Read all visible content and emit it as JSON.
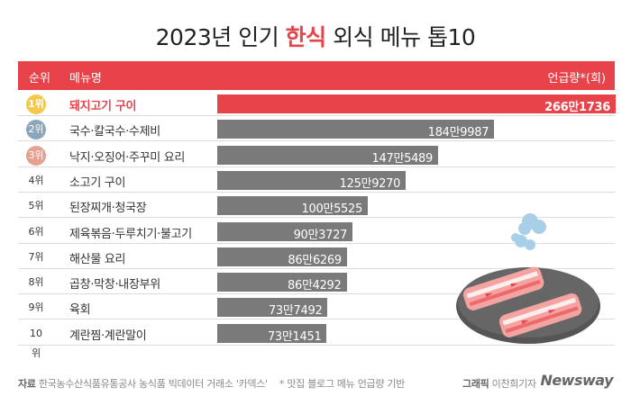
{
  "title": {
    "before": "2023년 인기 ",
    "highlight": "한식",
    "after": " 외식 메뉴 톱10"
  },
  "header": {
    "rank_label": "순위",
    "menu_label": "메뉴명",
    "unit_label": "언급량*(회)"
  },
  "colors": {
    "accent": "#e8434a",
    "bar": "#7a7a7a",
    "rank1": "#f3c84b",
    "rank2": "#8aa6bb",
    "rank3": "#e6a08f"
  },
  "chart_data": {
    "type": "bar",
    "orientation": "horizontal",
    "categories": [
      "돼지고기 구이",
      "국수·칼국수·수제비",
      "낙지·오징어·주꾸미 요리",
      "소고기 구이",
      "된장찌개·청국장",
      "제육볶음·두루치기·불고기",
      "해산물 요리",
      "곱창·막창·내장부위",
      "육회",
      "계란찜·계란말이"
    ],
    "ranks": [
      "1위",
      "2위",
      "3위",
      "4위",
      "5위",
      "6위",
      "7위",
      "8위",
      "9위",
      "10위"
    ],
    "values": [
      2661736,
      1849987,
      1475489,
      1259270,
      1005525,
      903727,
      866269,
      864292,
      737492,
      731451
    ],
    "value_labels": [
      "266만1736",
      "184만9987",
      "147만5489",
      "125만9270",
      "100만5525",
      "90만3727",
      "86만6269",
      "86만4292",
      "73만7492",
      "73만1451"
    ],
    "xlim": [
      0,
      2661736
    ],
    "unit": "언급량*(회)",
    "grid": false,
    "legend": "none"
  },
  "footer": {
    "source_label": "자료",
    "source_text": "한국농수산식품유통공사 농식품 빅데이터 거래소 '카덱스'",
    "note": "* 맛집 블로그 메뉴 언급량 기반",
    "credit_label": "그래픽",
    "credit_name": "이찬희기자",
    "logo": "Newsway"
  },
  "illustration": {
    "icon": "grilled-pork-belly-plate-icon"
  }
}
